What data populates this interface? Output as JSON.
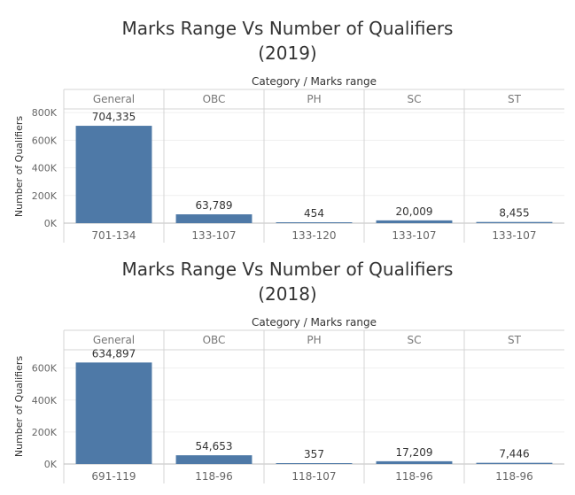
{
  "chart_data": [
    {
      "type": "bar",
      "title": "Marks Range Vs Number of Qualifiers",
      "subtitle": "(2019)",
      "column_header": "Category  /  Marks range",
      "ylabel": "Number of Qualifiers",
      "yticks": [
        "0K",
        "200K",
        "400K",
        "600K",
        "800K"
      ],
      "ytick_values": [
        0,
        200000,
        400000,
        600000,
        800000
      ],
      "ylim": [
        0,
        820000
      ],
      "categories": [
        "General",
        "OBC",
        "PH",
        "SC",
        "ST"
      ],
      "marks_ranges": [
        "701-134",
        "133-107",
        "133-120",
        "133-107",
        "133-107"
      ],
      "values": [
        704335,
        63789,
        454,
        20009,
        8455
      ],
      "value_labels": [
        "704,335",
        "63,789",
        "454",
        "20,009",
        "8,455"
      ],
      "bar_color": "#4e79a7"
    },
    {
      "type": "bar",
      "title": "Marks Range Vs Number of Qualifiers",
      "subtitle": "(2018)",
      "column_header": "Category  /  Marks range",
      "ylabel": "Number of Qualifiers",
      "yticks": [
        "0K",
        "200K",
        "400K",
        "600K"
      ],
      "ytick_values": [
        0,
        200000,
        400000,
        600000
      ],
      "ylim": [
        0,
        720000
      ],
      "categories": [
        "General",
        "OBC",
        "PH",
        "SC",
        "ST"
      ],
      "marks_ranges": [
        "691-119",
        "118-96",
        "118-107",
        "118-96",
        "118-96"
      ],
      "values": [
        634897,
        54653,
        357,
        17209,
        7446
      ],
      "value_labels": [
        "634,897",
        "54,653",
        "357",
        "17,209",
        "7,446"
      ],
      "bar_color": "#4e79a7"
    }
  ]
}
